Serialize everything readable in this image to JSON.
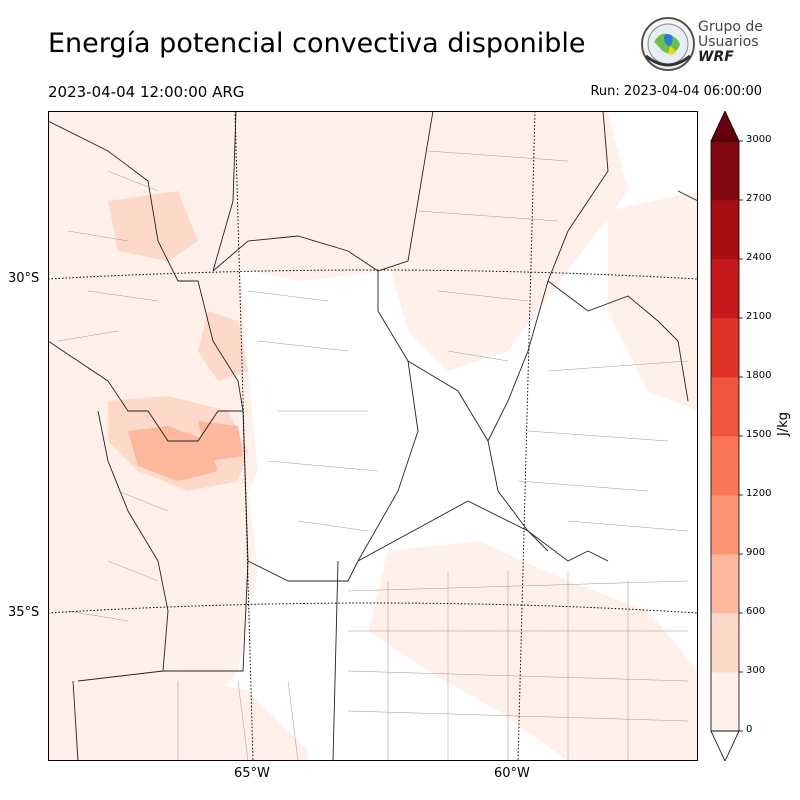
{
  "header": {
    "title": "Energía potencial convectiva disponible",
    "valid_time": "2023-04-04 12:00:00 ARG",
    "run_time": "Run: 2023-04-04 06:00:00"
  },
  "logo": {
    "line1": "Grupo de",
    "line2": "Usuarios",
    "line3": "WRF"
  },
  "map": {
    "lat_labels": [
      {
        "text": "30°S",
        "lat": -30
      },
      {
        "text": "35°S",
        "lat": -35
      }
    ],
    "lon_labels": [
      {
        "text": "65°W",
        "lon": -65
      },
      {
        "text": "60°W",
        "lon": -60
      }
    ]
  },
  "colorbar": {
    "unit": "J/kg",
    "levels": [
      0,
      300,
      600,
      900,
      1200,
      1500,
      1800,
      2100,
      2400,
      2700,
      3000
    ],
    "colors": [
      "#fff0ea",
      "#fed8c9",
      "#fcb89d",
      "#fc9474",
      "#fb7656",
      "#f05540",
      "#e03226",
      "#c6181c",
      "#a80f15",
      "#800910"
    ],
    "over_color": "#67000d",
    "under_color": "#ffffff"
  }
}
